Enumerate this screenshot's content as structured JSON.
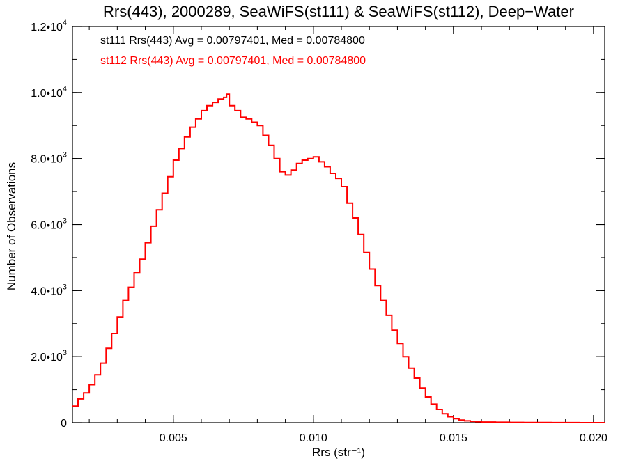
{
  "chart_data": {
    "type": "line",
    "title": "Rrs(443), 2000289, SeaWiFS(st111) & SeaWiFS(st112), Deep−Water",
    "xlabel": "Rrs (str⁻¹)",
    "ylabel": "Number of Observations",
    "xlim": [
      0.0014,
      0.0204
    ],
    "ylim": [
      0,
      12000
    ],
    "x_ticks": [
      {
        "value": 0.005,
        "label": "0.005"
      },
      {
        "value": 0.01,
        "label": "0.010"
      },
      {
        "value": 0.015,
        "label": "0.015"
      },
      {
        "value": 0.02,
        "label": "0.020"
      }
    ],
    "y_ticks": [
      {
        "value": 0,
        "mant": "0",
        "exp": ""
      },
      {
        "value": 2000,
        "mant": "2.0•10",
        "exp": "3"
      },
      {
        "value": 4000,
        "mant": "4.0•10",
        "exp": "3"
      },
      {
        "value": 6000,
        "mant": "6.0•10",
        "exp": "3"
      },
      {
        "value": 8000,
        "mant": "8.0•10",
        "exp": "3"
      },
      {
        "value": 10000,
        "mant": "1.0•10",
        "exp": "4"
      },
      {
        "value": 12000,
        "mant": "1.2•10",
        "exp": "4"
      }
    ],
    "grid": false,
    "legend_position": "top-left",
    "legend": [
      {
        "text": "st111 Rrs(443) Avg = 0.00797401, Med = 0.00784800",
        "color": "#000000"
      },
      {
        "text": "st112 Rrs(443) Avg = 0.00797401, Med = 0.00784800",
        "color": "#ff0000"
      }
    ],
    "series": [
      {
        "color": "#ff0000",
        "style": "step",
        "x": [
          0.0014,
          0.0016,
          0.0018,
          0.002,
          0.0022,
          0.0024,
          0.0026,
          0.0028,
          0.003,
          0.0032,
          0.0034,
          0.0036,
          0.0038,
          0.004,
          0.0042,
          0.0044,
          0.0046,
          0.0048,
          0.005,
          0.0052,
          0.0054,
          0.0056,
          0.0058,
          0.006,
          0.0062,
          0.0064,
          0.0066,
          0.0068,
          0.0069,
          0.007,
          0.0072,
          0.0074,
          0.0076,
          0.0078,
          0.008,
          0.0082,
          0.0084,
          0.0086,
          0.0088,
          0.009,
          0.0092,
          0.0094,
          0.0096,
          0.0098,
          0.01,
          0.0102,
          0.0104,
          0.0106,
          0.0108,
          0.011,
          0.0112,
          0.0114,
          0.0116,
          0.0118,
          0.012,
          0.0122,
          0.0124,
          0.0126,
          0.0128,
          0.013,
          0.0132,
          0.0134,
          0.0136,
          0.0138,
          0.014,
          0.0142,
          0.0144,
          0.0146,
          0.0148,
          0.015,
          0.0152,
          0.0154,
          0.0156,
          0.0158,
          0.016,
          0.0165,
          0.017,
          0.0175,
          0.018,
          0.0185,
          0.019,
          0.0195,
          0.02,
          0.0204
        ],
        "y": [
          500,
          720,
          900,
          1150,
          1450,
          1800,
          2250,
          2700,
          3200,
          3700,
          4100,
          4550,
          4950,
          5450,
          5950,
          6450,
          6950,
          7450,
          7950,
          8300,
          8650,
          8950,
          9200,
          9450,
          9600,
          9700,
          9800,
          9850,
          9950,
          9600,
          9450,
          9250,
          9200,
          9100,
          9000,
          8700,
          8400,
          8000,
          7600,
          7500,
          7650,
          7850,
          7950,
          8000,
          8050,
          7900,
          7750,
          7550,
          7400,
          7150,
          6650,
          6200,
          5700,
          5150,
          4650,
          4150,
          3700,
          3250,
          2800,
          2400,
          2000,
          1650,
          1350,
          1050,
          780,
          560,
          400,
          270,
          180,
          120,
          80,
          55,
          40,
          30,
          20,
          12,
          8,
          5,
          4,
          3,
          2,
          1,
          0,
          0
        ]
      }
    ]
  }
}
